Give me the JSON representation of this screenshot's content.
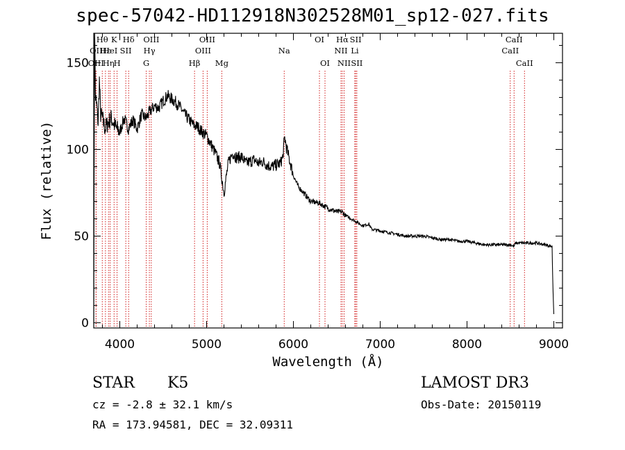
{
  "header": {
    "title": "spec-57042-HD112918N302528M01_sp12-027.fits"
  },
  "info": {
    "object_class": "STAR",
    "subclass": "K5",
    "redshift": "cz = -2.8 ± 32.1 km/s",
    "coords": "RA = 173.94581, DEC =  32.09311",
    "survey": "LAMOST DR3",
    "obs_date": "Obs-Date: 20150119"
  },
  "colors": {
    "line_marker": "#cc0000",
    "spectrum": "#000000"
  },
  "chart_data": {
    "type": "line",
    "title": "spec-57042-HD112918N302528M01_sp12-027.fits",
    "xlabel": "Wavelength (Å)",
    "ylabel": "Flux (relative)",
    "xlim": [
      3700,
      9100
    ],
    "ylim": [
      -3,
      167
    ],
    "xticks": [
      4000,
      5000,
      6000,
      7000,
      8000,
      9000
    ],
    "yticks": [
      0,
      50,
      100,
      150
    ],
    "series": [
      {
        "name": "flux",
        "x": [
          3700,
          3710,
          3720,
          3735,
          3750,
          3765,
          3780,
          3800,
          3830,
          3860,
          3900,
          3950,
          4000,
          4050,
          4100,
          4150,
          4200,
          4250,
          4300,
          4350,
          4400,
          4450,
          4500,
          4550,
          4600,
          4650,
          4700,
          4750,
          4800,
          4850,
          4900,
          4950,
          5000,
          5050,
          5100,
          5150,
          5180,
          5200,
          5250,
          5300,
          5350,
          5400,
          5450,
          5500,
          5550,
          5600,
          5650,
          5700,
          5750,
          5800,
          5850,
          5880,
          5890,
          5900,
          5920,
          5950,
          6000,
          6050,
          6100,
          6150,
          6200,
          6300,
          6400,
          6500,
          6560,
          6600,
          6700,
          6800,
          6870,
          6900,
          7000,
          7100,
          7200,
          7300,
          7400,
          7500,
          7600,
          7700,
          7800,
          7900,
          8000,
          8100,
          8200,
          8300,
          8400,
          8500,
          8540,
          8560,
          8600,
          8700,
          8800,
          8900,
          8980,
          8990,
          9000
        ],
        "y": [
          5,
          170,
          130,
          125,
          115,
          140,
          120,
          118,
          112,
          115,
          118,
          113,
          110,
          118,
          112,
          117,
          112,
          120,
          118,
          122,
          125,
          124,
          128,
          131,
          129,
          127,
          124,
          120,
          117,
          114,
          113,
          110,
          108,
          103,
          98,
          92,
          82,
          75,
          92,
          98,
          95,
          96,
          92,
          93,
          94,
          92,
          93,
          91,
          90,
          91,
          92,
          96,
          103,
          107,
          101,
          95,
          85,
          79,
          76,
          73,
          70,
          69,
          66,
          64,
          64,
          62,
          59,
          56,
          57,
          54,
          53,
          52,
          51,
          50,
          50,
          50,
          49,
          48,
          48,
          47,
          47,
          46,
          45,
          45,
          45,
          45,
          44,
          46,
          46,
          46,
          46,
          45,
          44,
          20,
          5
        ]
      }
    ],
    "annotations": [
      {
        "label": "Hθ",
        "x": 3798,
        "row": 0
      },
      {
        "label": "OII",
        "x": 3727,
        "row": 1
      },
      {
        "label": "OIII",
        "x": 3726,
        "row": 2
      },
      {
        "label": "Hε",
        "x": 3835,
        "row": 1
      },
      {
        "label": "Hη",
        "x": 3870,
        "row": 2
      },
      {
        "label": "K",
        "x": 3934,
        "row": 0
      },
      {
        "label": "HeI",
        "x": 3889,
        "row": 1
      },
      {
        "label": "SII",
        "x": 4069,
        "row": 1
      },
      {
        "label": "H",
        "x": 3969,
        "row": 2
      },
      {
        "label": "Hδ",
        "x": 4102,
        "row": 0
      },
      {
        "label": "OIII",
        "x": 4363,
        "row": 0
      },
      {
        "label": "Hγ",
        "x": 4341,
        "row": 1
      },
      {
        "label": "G",
        "x": 4305,
        "row": 2
      },
      {
        "label": "Hβ",
        "x": 4861,
        "row": 2
      },
      {
        "label": "OIII",
        "x": 5007,
        "row": 0
      },
      {
        "label": "OIII",
        "x": 4959,
        "row": 1
      },
      {
        "label": "Mg",
        "x": 5175,
        "row": 2
      },
      {
        "label": "Na",
        "x": 5894,
        "row": 1
      },
      {
        "label": "OI",
        "x": 6300,
        "row": 0
      },
      {
        "label": "OI",
        "x": 6364,
        "row": 2
      },
      {
        "label": "Hα",
        "x": 6563,
        "row": 0
      },
      {
        "label": "NII",
        "x": 6548,
        "row": 1
      },
      {
        "label": "NII",
        "x": 6584,
        "row": 2
      },
      {
        "label": "SII",
        "x": 6717,
        "row": 0
      },
      {
        "label": "Li",
        "x": 6707,
        "row": 1
      },
      {
        "label": "SII",
        "x": 6731,
        "row": 2
      },
      {
        "label": "CaII",
        "x": 8542,
        "row": 0
      },
      {
        "label": "CaII",
        "x": 8498,
        "row": 1
      },
      {
        "label": "CaII",
        "x": 8662,
        "row": 2
      }
    ]
  }
}
